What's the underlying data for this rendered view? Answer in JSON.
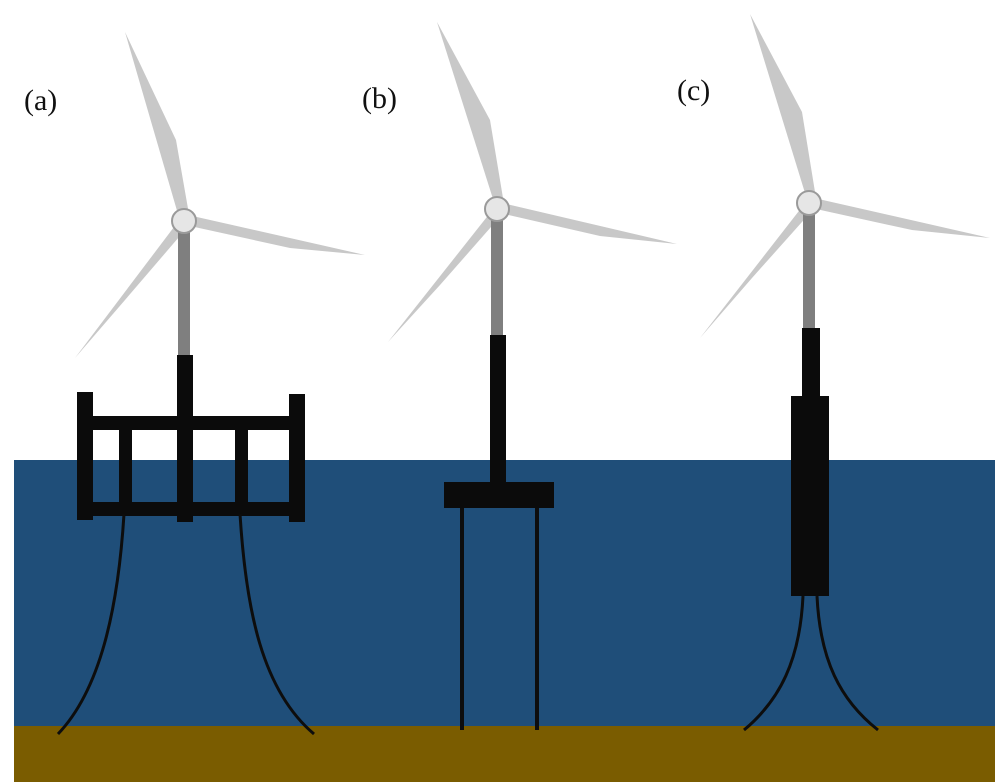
{
  "labels": {
    "a": "(a)",
    "b": "(b)",
    "c": "(c)"
  },
  "colors": {
    "sky": "#ffffff",
    "sea": "#1f4e79",
    "seabed": "#7a5c00",
    "structure": "#0b0b0b",
    "tower": "#7f7f7f",
    "blade": "#c8c8c8",
    "hub": "#e6e6e6",
    "mooring": "#0d0d0d"
  },
  "turbines": [
    {
      "panel": "a",
      "concept": "semi-submersible",
      "mooring": "catenary"
    },
    {
      "panel": "b",
      "concept": "tension-leg-platform",
      "mooring": "tendons"
    },
    {
      "panel": "c",
      "concept": "spar-buoy",
      "mooring": "catenary"
    }
  ]
}
